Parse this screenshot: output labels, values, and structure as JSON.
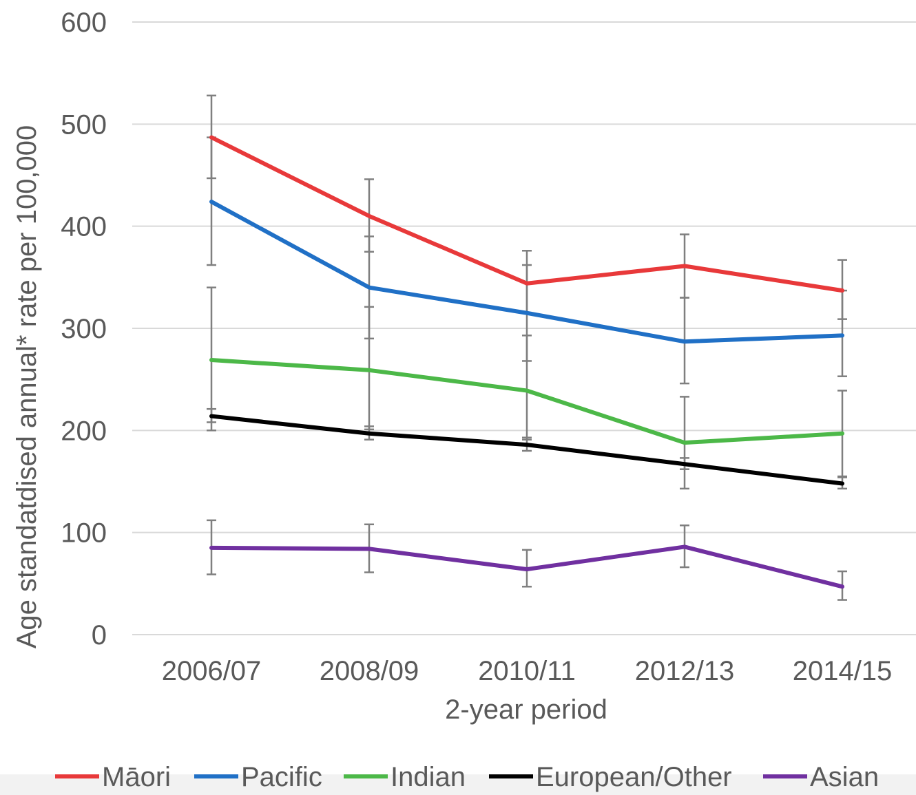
{
  "chart_data": {
    "type": "line",
    "xlabel": "2-year period",
    "ylabel": "Age standatdised annual* rate per 100,000",
    "categories": [
      "2006/07",
      "2008/09",
      "2010/11",
      "2012/13",
      "2014/15"
    ],
    "ylim": [
      0,
      600
    ],
    "yticks": [
      "0",
      "100",
      "200",
      "300",
      "400",
      "500",
      "600"
    ],
    "ytick_values": [
      0,
      100,
      200,
      300,
      400,
      500,
      600
    ],
    "grid": true,
    "legend_position": "bottom",
    "series": [
      {
        "name": "Māori",
        "color": "#e8393a",
        "values": [
          487,
          410,
          344,
          361,
          337
        ],
        "ci_low": [
          447,
          375,
          315,
          330,
          309
        ],
        "ci_high": [
          528,
          446,
          376,
          392,
          367
        ]
      },
      {
        "name": "Pacific",
        "color": "#2070c6",
        "values": [
          424,
          340,
          315,
          287,
          293
        ],
        "ci_low": [
          362,
          290,
          268,
          246,
          253
        ],
        "ci_high": [
          487,
          390,
          362,
          330,
          337
        ]
      },
      {
        "name": "Indian",
        "color": "#4cb848",
        "values": [
          269,
          259,
          239,
          188,
          197
        ],
        "ci_low": [
          200,
          201,
          191,
          143,
          155
        ],
        "ci_high": [
          340,
          321,
          293,
          233,
          239
        ]
      },
      {
        "name": "European/Other",
        "color": "#000000",
        "values": [
          214,
          197,
          186,
          167,
          148
        ],
        "ci_low": [
          208,
          191,
          180,
          162,
          143
        ],
        "ci_high": [
          221,
          204,
          193,
          173,
          154
        ]
      },
      {
        "name": "Asian",
        "color": "#7030a0",
        "values": [
          85,
          84,
          64,
          86,
          47
        ],
        "ci_low": [
          59,
          61,
          47,
          66,
          34
        ],
        "ci_high": [
          112,
          108,
          83,
          107,
          62
        ]
      }
    ]
  }
}
